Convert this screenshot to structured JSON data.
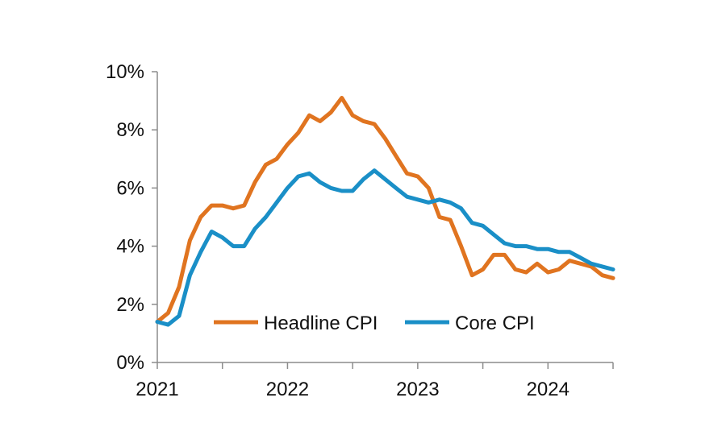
{
  "chart_data": {
    "type": "line",
    "title": "",
    "xlabel": "",
    "ylabel": "",
    "ylim": [
      0,
      10
    ],
    "xlim": [
      2021.0,
      2024.5
    ],
    "yticks": [
      {
        "value": 0,
        "label": "0%"
      },
      {
        "value": 2,
        "label": "2%"
      },
      {
        "value": 4,
        "label": "4%"
      },
      {
        "value": 6,
        "label": "6%"
      },
      {
        "value": 8,
        "label": "8%"
      },
      {
        "value": 10,
        "label": "10%"
      }
    ],
    "xticks": [
      {
        "value": 2021,
        "label": "2021"
      },
      {
        "value": 2022,
        "label": "2022"
      },
      {
        "value": 2023,
        "label": "2023"
      },
      {
        "value": 2024,
        "label": "2024"
      }
    ],
    "legend_position": "bottom-center",
    "grid": false,
    "series": [
      {
        "name": "Headline CPI",
        "color": "#e07420",
        "x": [
          2021.0,
          2021.083,
          2021.167,
          2021.25,
          2021.333,
          2021.417,
          2021.5,
          2021.583,
          2021.667,
          2021.75,
          2021.833,
          2021.917,
          2022.0,
          2022.083,
          2022.167,
          2022.25,
          2022.333,
          2022.417,
          2022.5,
          2022.583,
          2022.667,
          2022.75,
          2022.833,
          2022.917,
          2023.0,
          2023.083,
          2023.167,
          2023.25,
          2023.333,
          2023.417,
          2023.5,
          2023.583,
          2023.667,
          2023.75,
          2023.833,
          2023.917,
          2024.0,
          2024.083,
          2024.167,
          2024.25,
          2024.333,
          2024.417,
          2024.5
        ],
        "values": [
          1.4,
          1.7,
          2.6,
          4.2,
          5.0,
          5.4,
          5.4,
          5.3,
          5.4,
          6.2,
          6.8,
          7.0,
          7.5,
          7.9,
          8.5,
          8.3,
          8.6,
          9.1,
          8.5,
          8.3,
          8.2,
          7.7,
          7.1,
          6.5,
          6.4,
          6.0,
          5.0,
          4.9,
          4.0,
          3.0,
          3.2,
          3.7,
          3.7,
          3.2,
          3.1,
          3.4,
          3.1,
          3.2,
          3.5,
          3.4,
          3.3,
          3.0,
          2.9
        ]
      },
      {
        "name": "Core CPI",
        "color": "#1a8fc7",
        "x": [
          2021.0,
          2021.083,
          2021.167,
          2021.25,
          2021.333,
          2021.417,
          2021.5,
          2021.583,
          2021.667,
          2021.75,
          2021.833,
          2021.917,
          2022.0,
          2022.083,
          2022.167,
          2022.25,
          2022.333,
          2022.417,
          2022.5,
          2022.583,
          2022.667,
          2022.75,
          2022.833,
          2022.917,
          2023.0,
          2023.083,
          2023.167,
          2023.25,
          2023.333,
          2023.417,
          2023.5,
          2023.583,
          2023.667,
          2023.75,
          2023.833,
          2023.917,
          2024.0,
          2024.083,
          2024.167,
          2024.25,
          2024.333,
          2024.417,
          2024.5
        ],
        "values": [
          1.4,
          1.3,
          1.6,
          3.0,
          3.8,
          4.5,
          4.3,
          4.0,
          4.0,
          4.6,
          5.0,
          5.5,
          6.0,
          6.4,
          6.5,
          6.2,
          6.0,
          5.9,
          5.9,
          6.3,
          6.6,
          6.3,
          6.0,
          5.7,
          5.6,
          5.5,
          5.6,
          5.5,
          5.3,
          4.8,
          4.7,
          4.4,
          4.1,
          4.0,
          4.0,
          3.9,
          3.9,
          3.8,
          3.8,
          3.6,
          3.4,
          3.3,
          3.2
        ]
      }
    ]
  }
}
